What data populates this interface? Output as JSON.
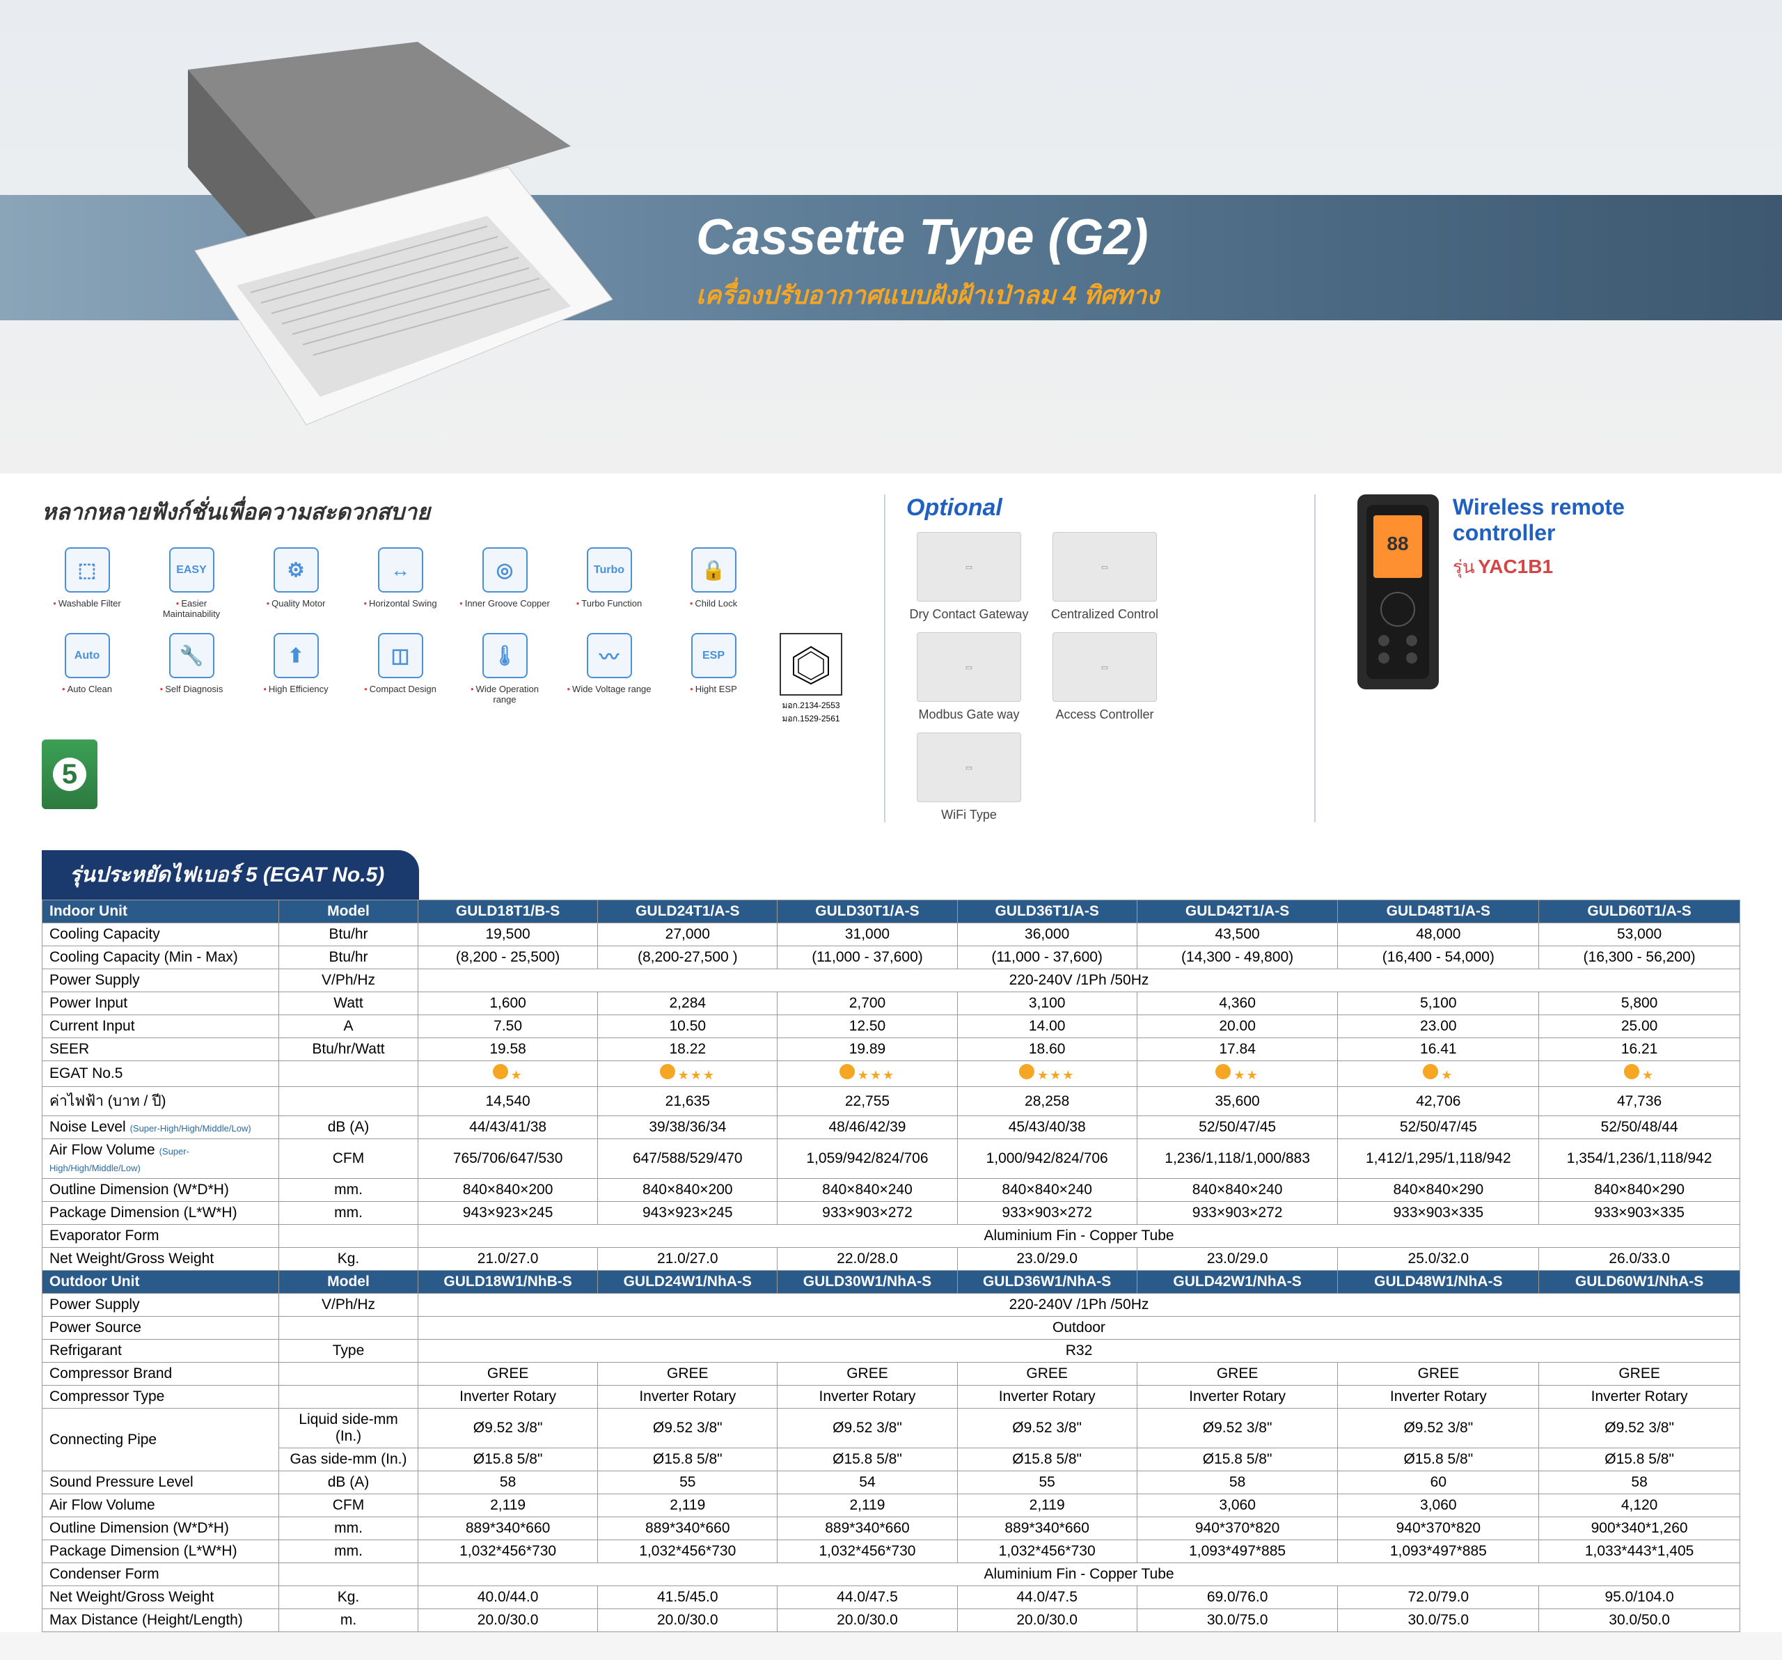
{
  "hero": {
    "title": "Cassette Type (G2)",
    "subtitle": "เครื่องปรับอากาศแบบฝังฝ้าเป่าลม 4 ทิศทาง"
  },
  "features": {
    "title": "หลากหลายฟังก์ชั่นเพื่อความสะดวกสบาย",
    "items": [
      {
        "label": "Washable Filter",
        "glyph": "⬚"
      },
      {
        "label": "Easier Maintainability",
        "glyph": "EASY"
      },
      {
        "label": "Quality Motor",
        "glyph": "⚙"
      },
      {
        "label": "Horizontal Swing",
        "glyph": "↔"
      },
      {
        "label": "Inner Groove Copper",
        "glyph": "◎"
      },
      {
        "label": "Turbo Function",
        "glyph": "Turbo"
      },
      {
        "label": "Child Lock",
        "glyph": "🔒"
      },
      {
        "label": "Auto Clean",
        "glyph": "Auto"
      },
      {
        "label": "Self Diagnosis",
        "glyph": "🔧"
      },
      {
        "label": "High Efficiency",
        "glyph": "⬆"
      },
      {
        "label": "Compact Design",
        "glyph": "◫"
      },
      {
        "label": "Wide Operation range",
        "glyph": "🌡"
      },
      {
        "label": "Wide Voltage range",
        "glyph": "〰"
      },
      {
        "label": "Hight ESP",
        "glyph": "ESP"
      }
    ],
    "cert1": "มอก.2134-2553",
    "cert2": "มอก.1529-2561",
    "energy": "5"
  },
  "optional": {
    "title": "Optional",
    "items": [
      {
        "label": "Dry Contact Gateway"
      },
      {
        "label": "Centralized Control"
      },
      {
        "label": "Modbus Gate way"
      },
      {
        "label": "Access Controller"
      },
      {
        "label": "WiFi Type"
      }
    ]
  },
  "remote": {
    "title": "Wireless remote controller",
    "prefix": "รุ่น",
    "model": "YAC1B1"
  },
  "egat": "รุ่นประหยัดไฟเบอร์ 5 (EGAT No.5)",
  "models": [
    "GULD18T1/B-S",
    "GULD24T1/A-S",
    "GULD30T1/A-S",
    "GULD36T1/A-S",
    "GULD42T1/A-S",
    "GULD48T1/A-S",
    "GULD60T1/A-S"
  ],
  "outdoor_models": [
    "GULD18W1/NhB-S",
    "GULD24W1/NhA-S",
    "GULD30W1/NhA-S",
    "GULD36W1/NhA-S",
    "GULD42W1/NhA-S",
    "GULD48W1/NhA-S",
    "GULD60W1/NhA-S"
  ],
  "indoor_label": "Indoor Unit",
  "outdoor_label": "Outdoor Unit",
  "model_label": "Model",
  "rows_indoor": [
    {
      "label": "Cooling Capacity",
      "unit": "Btu/hr",
      "vals": [
        "19,500",
        "27,000",
        "31,000",
        "36,000",
        "43,500",
        "48,000",
        "53,000"
      ]
    },
    {
      "label": "Cooling Capacity (Min - Max)",
      "unit": "Btu/hr",
      "vals": [
        "(8,200 - 25,500)",
        "(8,200-27,500 )",
        "(11,000 - 37,600)",
        "(11,000 - 37,600)",
        "(14,300 - 49,800)",
        "(16,400 - 54,000)",
        "(16,300 - 56,200)"
      ]
    },
    {
      "label": "Power Supply",
      "unit": "V/Ph/Hz",
      "span": "220-240V /1Ph /50Hz"
    },
    {
      "label": "Power Input",
      "unit": "Watt",
      "vals": [
        "1,600",
        "2,284",
        "2,700",
        "3,100",
        "4,360",
        "5,100",
        "5,800"
      ]
    },
    {
      "label": "Current Input",
      "unit": "A",
      "vals": [
        "7.50",
        "10.50",
        "12.50",
        "14.00",
        "20.00",
        "23.00",
        "25.00"
      ]
    },
    {
      "label": "SEER",
      "unit": "Btu/hr/Watt",
      "vals": [
        "19.58",
        "18.22",
        "19.89",
        "18.60",
        "17.84",
        "16.41",
        "16.21"
      ]
    },
    {
      "label": "EGAT No.5",
      "unit": "",
      "stars": [
        1,
        3,
        3,
        3,
        2,
        1,
        1
      ]
    },
    {
      "label": "ค่าไฟฟ้า (บาท / ปี)",
      "unit": "",
      "vals": [
        "14,540",
        "21,635",
        "22,755",
        "28,258",
        "35,600",
        "42,706",
        "47,736"
      ]
    },
    {
      "label": "Noise Level",
      "note": "(Super-High/High/Middle/Low)",
      "unit": "dB (A)",
      "vals": [
        "44/43/41/38",
        "39/38/36/34",
        "48/46/42/39",
        "45/43/40/38",
        "52/50/47/45",
        "52/50/47/45",
        "52/50/48/44"
      ]
    },
    {
      "label": "Air Flow Volume",
      "note": "(Super-High/High/Middle/Low)",
      "unit": "CFM",
      "vals": [
        "765/706/647/530",
        "647/588/529/470",
        "1,059/942/824/706",
        "1,000/942/824/706",
        "1,236/1,118/1,000/883",
        "1,412/1,295/1,118/942",
        "1,354/1,236/1,118/942"
      ]
    },
    {
      "label": "Outline Dimension (W*D*H)",
      "unit": "mm.",
      "vals": [
        "840×840×200",
        "840×840×200",
        "840×840×240",
        "840×840×240",
        "840×840×240",
        "840×840×290",
        "840×840×290"
      ]
    },
    {
      "label": "Package Dimension (L*W*H)",
      "unit": "mm.",
      "vals": [
        "943×923×245",
        "943×923×245",
        "933×903×272",
        "933×903×272",
        "933×903×272",
        "933×903×335",
        "933×903×335"
      ]
    },
    {
      "label": "Evaporator Form",
      "unit": "",
      "span": "Aluminium Fin - Copper Tube"
    },
    {
      "label": "Net Weight/Gross Weight",
      "unit": "Kg.",
      "vals": [
        "21.0/27.0",
        "21.0/27.0",
        "22.0/28.0",
        "23.0/29.0",
        "23.0/29.0",
        "25.0/32.0",
        "26.0/33.0"
      ]
    }
  ],
  "rows_outdoor": [
    {
      "label": "Power Supply",
      "unit": "V/Ph/Hz",
      "span": "220-240V /1Ph /50Hz"
    },
    {
      "label": "Power Source",
      "unit": "",
      "span": "Outdoor"
    },
    {
      "label": "Refrigarant",
      "unit": "Type",
      "span": "R32"
    },
    {
      "label": "Compressor Brand",
      "unit": "",
      "vals": [
        "GREE",
        "GREE",
        "GREE",
        "GREE",
        "GREE",
        "GREE",
        "GREE"
      ]
    },
    {
      "label": "Compressor Type",
      "unit": "",
      "vals": [
        "Inverter Rotary",
        "Inverter Rotary",
        "Inverter Rotary",
        "Inverter Rotary",
        "Inverter Rotary",
        "Inverter Rotary",
        "Inverter Rotary"
      ]
    },
    {
      "label": "Connecting Pipe",
      "unit": "Liquid side-mm (In.)",
      "rowspan": true,
      "vals": [
        "Ø9.52 3/8\"",
        "Ø9.52 3/8\"",
        "Ø9.52 3/8\"",
        "Ø9.52 3/8\"",
        "Ø9.52 3/8\"",
        "Ø9.52 3/8\"",
        "Ø9.52 3/8\""
      ]
    },
    {
      "unit": "Gas side-mm (In.)",
      "vals": [
        "Ø15.8 5/8\"",
        "Ø15.8 5/8\"",
        "Ø15.8 5/8\"",
        "Ø15.8 5/8\"",
        "Ø15.8 5/8\"",
        "Ø15.8 5/8\"",
        "Ø15.8 5/8\""
      ]
    },
    {
      "label": "Sound Pressure Level",
      "unit": "dB (A)",
      "vals": [
        "58",
        "55",
        "54",
        "55",
        "58",
        "60",
        "58"
      ]
    },
    {
      "label": "Air Flow Volume",
      "unit": "CFM",
      "vals": [
        "2,119",
        "2,119",
        "2,119",
        "2,119",
        "3,060",
        "3,060",
        "4,120"
      ]
    },
    {
      "label": "Outline Dimension (W*D*H)",
      "unit": "mm.",
      "vals": [
        "889*340*660",
        "889*340*660",
        "889*340*660",
        "889*340*660",
        "940*370*820",
        "940*370*820",
        "900*340*1,260"
      ]
    },
    {
      "label": "Package Dimension (L*W*H)",
      "unit": "mm.",
      "vals": [
        "1,032*456*730",
        "1,032*456*730",
        "1,032*456*730",
        "1,032*456*730",
        "1,093*497*885",
        "1,093*497*885",
        "1,033*443*1,405"
      ]
    },
    {
      "label": "Condenser Form",
      "unit": "",
      "span": "Aluminium Fin - Copper Tube"
    },
    {
      "label": "Net Weight/Gross Weight",
      "unit": "Kg.",
      "vals": [
        "40.0/44.0",
        "41.5/45.0",
        "44.0/47.5",
        "44.0/47.5",
        "69.0/76.0",
        "72.0/79.0",
        "95.0/104.0"
      ]
    },
    {
      "label": "Max Distance (Height/Length)",
      "unit": "m.",
      "vals": [
        "20.0/30.0",
        "20.0/30.0",
        "20.0/30.0",
        "20.0/30.0",
        "30.0/75.0",
        "30.0/75.0",
        "30.0/50.0"
      ]
    }
  ]
}
